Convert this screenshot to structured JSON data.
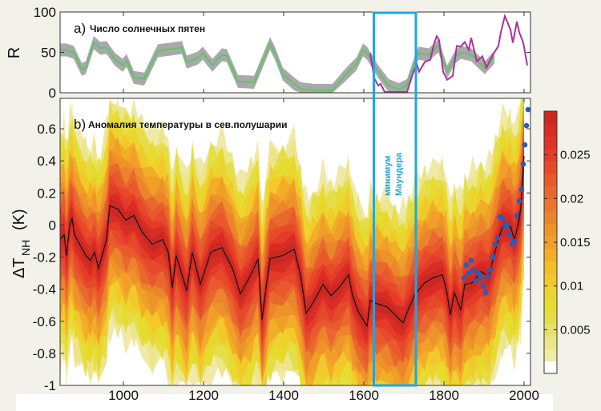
{
  "colors": {
    "background": "#f2f1ea",
    "reconstruction_line": "#5cc46a",
    "reconstruction_band": "#a9a9a9",
    "observed_sunspots": "#b0309a",
    "temperature_line": "#111111",
    "instrumental_dots": "#2a5cb8",
    "maunder_box": "#1ea6e6"
  },
  "chart_data": [
    {
      "id": "panel-a",
      "type": "line",
      "panel_letter": "a)",
      "title": "Число солнечных пятен",
      "ylabel": "R",
      "xlim": [
        842,
        2016
      ],
      "ylim": [
        0,
        100
      ],
      "yticks": [
        0,
        50,
        100
      ],
      "xticks": [
        1000,
        1200,
        1400,
        1600,
        1800,
        2000
      ],
      "series": [
        {
          "kind": "reconstruction",
          "band_halfwidth": 8,
          "x": [
            842,
            858,
            876,
            896,
            906,
            926,
            942,
            958,
            978,
            998,
            1008,
            1026,
            1052,
            1086,
            1118,
            1146,
            1158,
            1186,
            1198,
            1222,
            1246,
            1258,
            1286,
            1326,
            1366,
            1378,
            1398,
            1426,
            1442,
            1476,
            1522,
            1556,
            1582,
            1598,
            1608,
            1636,
            1662,
            1688,
            1708,
            1728,
            1736,
            1762,
            1786,
            1808,
            1828,
            1842,
            1868,
            1902,
            1926
          ],
          "y": [
            53,
            53,
            50,
            29,
            31,
            62,
            55,
            56,
            42,
            34,
            40,
            19,
            17,
            52,
            54,
            56,
            38,
            43,
            49,
            34,
            47,
            46,
            14,
            13,
            61,
            49,
            23,
            11,
            5,
            3,
            3,
            23,
            36,
            53,
            49,
            26,
            9,
            4,
            9,
            39,
            49,
            47,
            58,
            26,
            44,
            50,
            47,
            31,
            44
          ]
        },
        {
          "kind": "observed",
          "x": [
            1616,
            1626,
            1636,
            1642,
            1652,
            1708,
            1722,
            1732,
            1738,
            1752,
            1766,
            1776,
            1782,
            1788,
            1798,
            1808,
            1822,
            1832,
            1842,
            1852,
            1862,
            1868,
            1882,
            1896,
            1906,
            1922,
            1936,
            1942,
            1952,
            1958,
            1966,
            1972,
            1982,
            1988,
            1998,
            2008
          ],
          "y": [
            49,
            18,
            9,
            11,
            1,
            1,
            23,
            36,
            26,
            38,
            41,
            62,
            70,
            65,
            26,
            16,
            21,
            58,
            57,
            63,
            53,
            68,
            39,
            45,
            31,
            47,
            58,
            75,
            95,
            88,
            78,
            62,
            88,
            75,
            62,
            34
          ]
        }
      ]
    },
    {
      "id": "panel-b",
      "type": "area",
      "panel_letter": "b)",
      "title": "Аномалия температуры в сев.полушарии",
      "ylabel_main": "ΔT",
      "ylabel_sub": "NH",
      "ylabel_unit": "(K)",
      "xlim": [
        842,
        2016
      ],
      "ylim": [
        -1,
        0.79
      ],
      "yticks": [
        -1,
        -0.8,
        -0.6,
        -0.4,
        -0.2,
        0,
        0.2,
        0.4,
        0.6
      ],
      "ytick_labels": [
        "-1",
        "-0.8",
        "-0.6",
        "-0.4",
        "-0.2",
        "0",
        "0.2",
        "0.4",
        "0.6"
      ],
      "xticks": [
        1000,
        1200,
        1400,
        1600,
        1800,
        2000
      ],
      "reconstruction": {
        "x": [
          842,
          852,
          858,
          866,
          872,
          878,
          906,
          918,
          928,
          938,
          958,
          966,
          986,
          1006,
          1026,
          1046,
          1072,
          1098,
          1112,
          1122,
          1132,
          1158,
          1172,
          1192,
          1218,
          1246,
          1272,
          1292,
          1318,
          1336,
          1346,
          1356,
          1366,
          1398,
          1426,
          1442,
          1456,
          1472,
          1498,
          1518,
          1538,
          1562,
          1572,
          1586,
          1608,
          1616,
          1632,
          1658,
          1678,
          1698,
          1712,
          1728,
          1752,
          1772,
          1796,
          1806,
          1816,
          1826,
          1842,
          1852,
          1872,
          1892,
          1912,
          1928,
          1946,
          1966,
          1976,
          1986,
          1992,
          2000
        ],
        "y": [
          -0.09,
          -0.06,
          -0.19,
          0.0,
          0.04,
          -0.06,
          -0.19,
          -0.22,
          -0.17,
          -0.27,
          -0.09,
          0.12,
          0.1,
          0.03,
          0.06,
          -0.04,
          -0.12,
          -0.09,
          -0.17,
          -0.39,
          -0.19,
          -0.41,
          -0.17,
          -0.37,
          -0.17,
          -0.14,
          -0.27,
          -0.43,
          -0.31,
          -0.21,
          -0.59,
          -0.39,
          -0.21,
          -0.19,
          -0.15,
          -0.31,
          -0.55,
          -0.49,
          -0.37,
          -0.44,
          -0.39,
          -0.31,
          -0.44,
          -0.54,
          -0.63,
          -0.47,
          -0.49,
          -0.51,
          -0.56,
          -0.61,
          -0.52,
          -0.43,
          -0.36,
          -0.33,
          -0.31,
          -0.4,
          -0.56,
          -0.42,
          -0.53,
          -0.37,
          -0.36,
          -0.29,
          -0.32,
          -0.16,
          -0.01,
          -0.01,
          -0.09,
          0.01,
          0.11,
          0.43
        ],
        "uncertainty_halfwidth": 0.42
      },
      "instrumental": {
        "x": [
          1850,
          1856,
          1862,
          1868,
          1874,
          1880,
          1886,
          1892,
          1898,
          1904,
          1910,
          1916,
          1922,
          1928,
          1934,
          1940,
          1946,
          1952,
          1958,
          1964,
          1970,
          1976,
          1982,
          1988,
          1994,
          1998,
          2002,
          2006,
          2010
        ],
        "y": [
          -0.33,
          -0.25,
          -0.3,
          -0.22,
          -0.28,
          -0.35,
          -0.3,
          -0.33,
          -0.38,
          -0.42,
          -0.32,
          -0.28,
          -0.2,
          -0.12,
          -0.08,
          0.05,
          0.04,
          -0.01,
          0.0,
          -0.06,
          -0.12,
          -0.1,
          0.06,
          0.15,
          0.22,
          0.38,
          0.5,
          0.62,
          0.72
        ]
      },
      "annotation": {
        "label_line1": "минимум",
        "label_line2": "Маундера",
        "x_range": [
          1625,
          1730
        ]
      }
    },
    {
      "id": "colorbar",
      "type": "heatmap",
      "range": [
        0,
        0.03
      ],
      "ticks": [
        0.005,
        0.01,
        0.015,
        0.02,
        0.025
      ],
      "tick_labels": [
        "0.005",
        "0.01",
        "0.015",
        "0.02",
        "0.025"
      ],
      "colors": [
        "#ffffff",
        "#f0e9a8",
        "#ece58a",
        "#e8e26a",
        "#e6de48",
        "#e6dc30",
        "#ecd42e",
        "#f2c82a",
        "#f4bc28",
        "#f2ae26",
        "#f0a028",
        "#ee922a",
        "#ec842c",
        "#ea762e",
        "#e8682e",
        "#e85a2c",
        "#e64a2a",
        "#e43c28",
        "#e03226",
        "#d82c24",
        "#cc2822"
      ]
    }
  ]
}
